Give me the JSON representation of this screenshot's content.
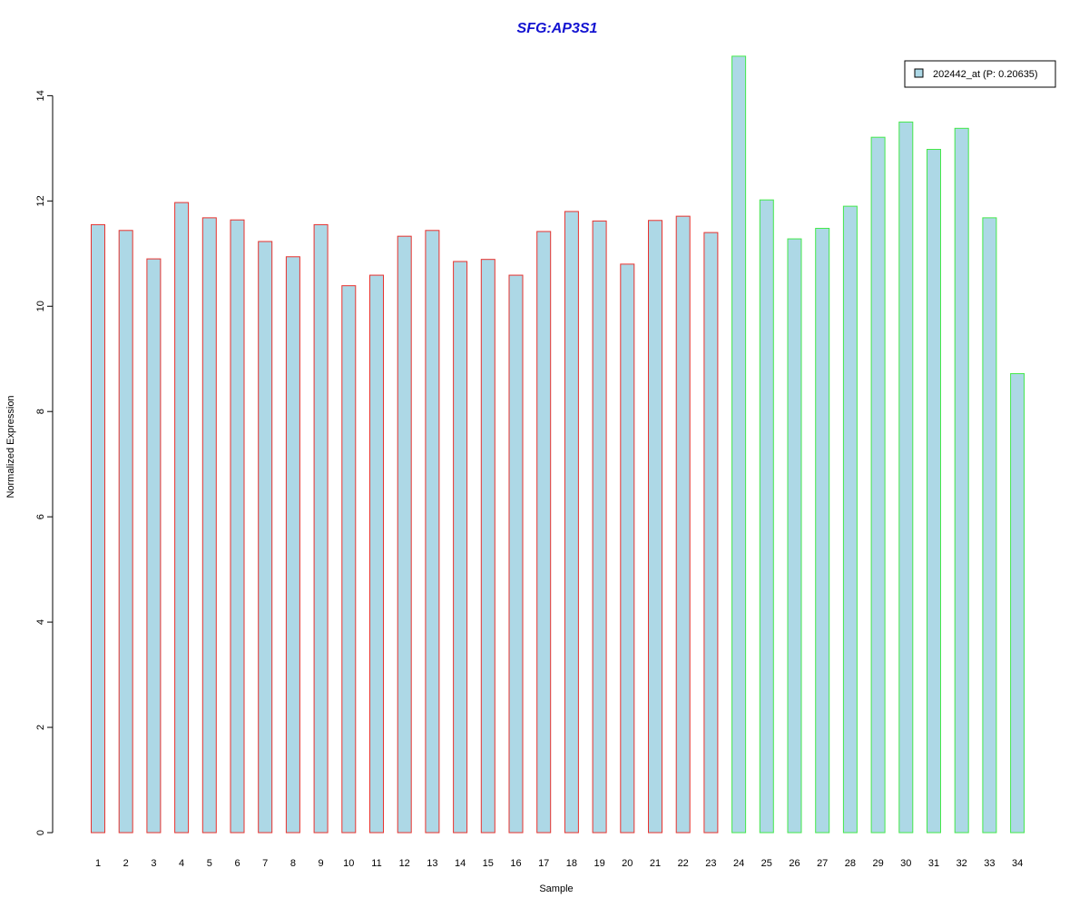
{
  "chart_data": {
    "type": "bar",
    "title": "SFG:AP3S1",
    "xlabel": "Sample",
    "ylabel": "Normalized Expression",
    "ylim": [
      0,
      14.8
    ],
    "yticks": [
      0,
      2,
      4,
      6,
      8,
      10,
      12,
      14
    ],
    "categories": [
      "1",
      "2",
      "3",
      "4",
      "5",
      "6",
      "7",
      "8",
      "9",
      "10",
      "11",
      "12",
      "13",
      "14",
      "15",
      "16",
      "17",
      "18",
      "19",
      "20",
      "21",
      "22",
      "23",
      "24",
      "25",
      "26",
      "27",
      "28",
      "29",
      "30",
      "31",
      "32",
      "33",
      "34"
    ],
    "series": [
      {
        "name": "202442_at (P: 0.20635)",
        "values": [
          11.55,
          11.44,
          10.9,
          11.97,
          11.68,
          11.64,
          11.23,
          10.94,
          11.55,
          10.39,
          10.59,
          11.33,
          11.44,
          10.85,
          10.89,
          10.59,
          11.42,
          11.8,
          11.62,
          10.8,
          11.63,
          11.71,
          11.4,
          14.75,
          12.02,
          11.28,
          11.48,
          11.9,
          13.21,
          13.5,
          12.98,
          13.38,
          11.68,
          8.72
        ]
      }
    ],
    "groups": [
      {
        "from": 1,
        "to": 23,
        "border_color": "#e8322e"
      },
      {
        "from": 24,
        "to": 34,
        "border_color": "#44e84a"
      }
    ],
    "colors": {
      "bar_fill": "#add8e6",
      "title": "#1313d1",
      "axis": "#000000"
    },
    "legend": {
      "placement": "top-right",
      "label": "202442_at (P: 0.20635)"
    },
    "grid": false
  }
}
